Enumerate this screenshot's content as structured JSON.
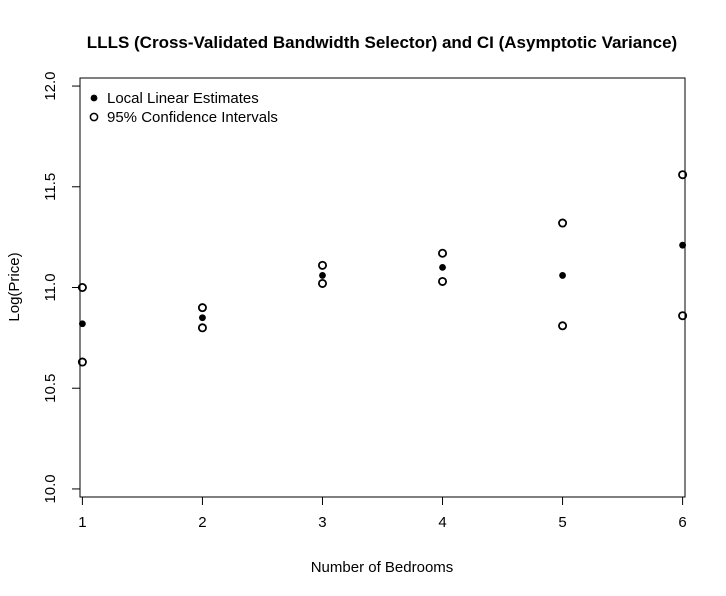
{
  "chart_data": {
    "type": "scatter",
    "title": "LLLS (Cross-Validated Bandwidth Selector) and CI (Asymptotic Variance)",
    "xlabel": "Number of Bedrooms",
    "ylabel": "Log(Price)",
    "x_ticks": [
      "1",
      "2",
      "3",
      "4",
      "5",
      "6"
    ],
    "y_ticks": [
      "10.0",
      "10.5",
      "11.0",
      "11.5",
      "12.0"
    ],
    "xlim": [
      0.98,
      6.02
    ],
    "ylim": [
      9.96,
      12.04
    ],
    "grid": false,
    "legend_position": "top-left",
    "series": [
      {
        "name": "Local Linear Estimates",
        "marker": "filled-circle",
        "x": [
          1,
          2,
          3,
          4,
          5,
          6
        ],
        "y": [
          10.82,
          10.85,
          11.06,
          11.1,
          11.06,
          11.21
        ]
      },
      {
        "name": "95% Confidence Intervals",
        "marker": "open-circle",
        "x": [
          1,
          1,
          2,
          2,
          3,
          3,
          4,
          4,
          5,
          5,
          6,
          6
        ],
        "y": [
          11.0,
          10.63,
          10.9,
          10.8,
          11.11,
          11.02,
          11.17,
          11.03,
          11.32,
          10.81,
          11.56,
          10.86
        ]
      }
    ]
  }
}
